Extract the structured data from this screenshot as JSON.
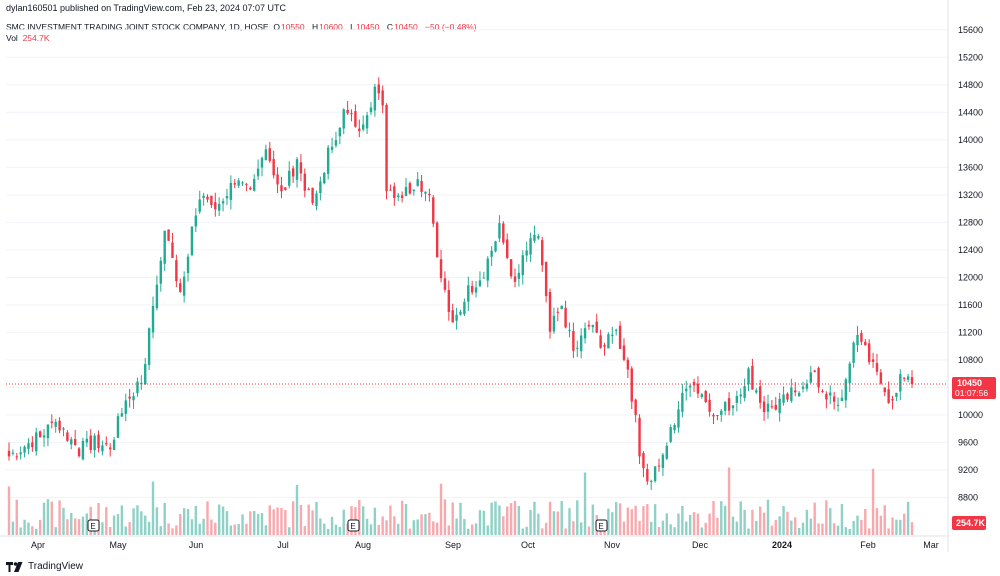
{
  "header": {
    "published": "dylan160501 published on TradingView.com, Feb 23, 2024 07:07 UTC"
  },
  "legend": {
    "symbol": "SMC INVESTMENT TRADING JOINT STOCK COMPANY, 1D, HOSE",
    "o_label": "O",
    "o_value": "10550",
    "h_label": "H",
    "h_value": "10600",
    "l_label": "L",
    "l_value": "10450",
    "c_label": "C",
    "c_value": "10450",
    "change": "−50 (−0.48%)",
    "vol_label": "Vol",
    "vol_value": "254.7K"
  },
  "footer": {
    "brand": "TradingView"
  },
  "chart_data": {
    "type": "candlestick",
    "x_labels": [
      "Apr",
      "May",
      "Jun",
      "Jul",
      "Aug",
      "Sep",
      "Oct",
      "Nov",
      "Dec",
      "2024",
      "Feb",
      "Mar"
    ],
    "y_ticks": [
      "15600",
      "15200",
      "14800",
      "14400",
      "14000",
      "13600",
      "13200",
      "12800",
      "12400",
      "12000",
      "11600",
      "11200",
      "10800",
      "10400",
      "10000",
      "9600",
      "9200",
      "8800"
    ],
    "ylim": [
      8400,
      15800
    ],
    "last_price_label": "10450",
    "countdown_label": "01:07:56",
    "volume_label": "254.7K",
    "event_markers": [
      {
        "label": "E",
        "date": "May"
      },
      {
        "label": "E",
        "date": "Aug"
      },
      {
        "label": "E",
        "date": "Nov"
      }
    ],
    "colors": {
      "up": "#22ab94",
      "down": "#f23645",
      "up_vol": "#8fd1c6",
      "down_vol": "#f7a9ae",
      "grid": "#f0f3fa"
    },
    "anchors": [
      {
        "i": 0,
        "close": 9400
      },
      {
        "i": 8,
        "close": 9700
      },
      {
        "i": 12,
        "close": 9900
      },
      {
        "i": 18,
        "close": 9500
      },
      {
        "i": 22,
        "close": 9600
      },
      {
        "i": 26,
        "close": 9550
      },
      {
        "i": 30,
        "close": 10200
      },
      {
        "i": 34,
        "close": 10500
      },
      {
        "i": 37,
        "close": 11500
      },
      {
        "i": 40,
        "close": 12700
      },
      {
        "i": 44,
        "close": 11800
      },
      {
        "i": 47,
        "close": 12700
      },
      {
        "i": 50,
        "close": 13200
      },
      {
        "i": 53,
        "close": 13000
      },
      {
        "i": 58,
        "close": 13400
      },
      {
        "i": 62,
        "close": 13200
      },
      {
        "i": 66,
        "close": 13900
      },
      {
        "i": 70,
        "close": 13200
      },
      {
        "i": 74,
        "close": 13700
      },
      {
        "i": 78,
        "close": 13000
      },
      {
        "i": 82,
        "close": 13800
      },
      {
        "i": 86,
        "close": 14400
      },
      {
        "i": 90,
        "close": 14200
      },
      {
        "i": 94,
        "close": 14700
      },
      {
        "i": 96,
        "close": 14500
      },
      {
        "i": 97,
        "close": 13300
      },
      {
        "i": 101,
        "close": 13200
      },
      {
        "i": 105,
        "close": 13400
      },
      {
        "i": 108,
        "close": 13200
      },
      {
        "i": 111,
        "close": 12000
      },
      {
        "i": 114,
        "close": 11300
      },
      {
        "i": 118,
        "close": 11800
      },
      {
        "i": 122,
        "close": 12100
      },
      {
        "i": 126,
        "close": 12700
      },
      {
        "i": 130,
        "close": 11900
      },
      {
        "i": 133,
        "close": 12400
      },
      {
        "i": 136,
        "close": 12600
      },
      {
        "i": 139,
        "close": 11200
      },
      {
        "i": 142,
        "close": 11600
      },
      {
        "i": 145,
        "close": 10900
      },
      {
        "i": 149,
        "close": 11300
      },
      {
        "i": 153,
        "close": 11000
      },
      {
        "i": 156,
        "close": 11200
      },
      {
        "i": 159,
        "close": 10700
      },
      {
        "i": 162,
        "close": 9500
      },
      {
        "i": 164,
        "close": 9000
      },
      {
        "i": 168,
        "close": 9400
      },
      {
        "i": 172,
        "close": 10100
      },
      {
        "i": 175,
        "close": 10500
      },
      {
        "i": 178,
        "close": 10300
      },
      {
        "i": 182,
        "close": 10000
      },
      {
        "i": 186,
        "close": 10200
      },
      {
        "i": 190,
        "close": 10600
      },
      {
        "i": 194,
        "close": 10100
      },
      {
        "i": 198,
        "close": 10150
      },
      {
        "i": 202,
        "close": 10350
      },
      {
        "i": 206,
        "close": 10600
      },
      {
        "i": 210,
        "close": 10300
      },
      {
        "i": 213,
        "close": 10100
      },
      {
        "i": 216,
        "close": 10700
      },
      {
        "i": 218,
        "close": 11200
      },
      {
        "i": 220,
        "close": 11000
      },
      {
        "i": 222,
        "close": 10700
      },
      {
        "i": 226,
        "close": 10200
      },
      {
        "i": 229,
        "close": 10500
      },
      {
        "i": 232,
        "close": 10450
      }
    ]
  }
}
